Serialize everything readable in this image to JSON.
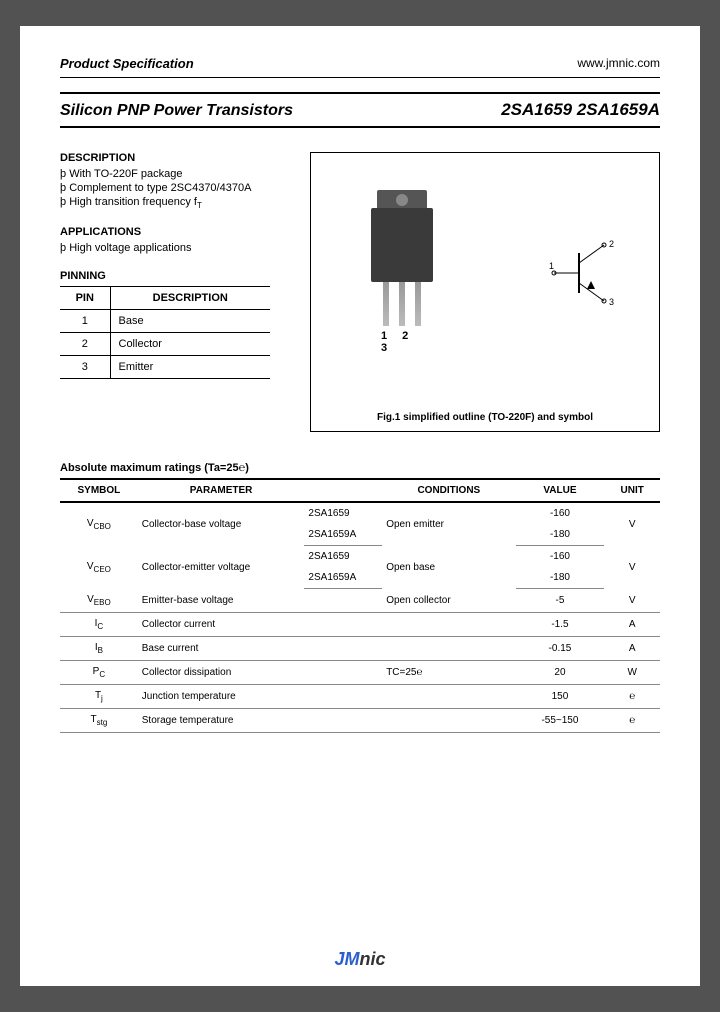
{
  "header": {
    "left": "Product Specification",
    "right": "www.jmnic.com"
  },
  "title": {
    "left": "Silicon PNP Power Transistors",
    "right": "2SA1659 2SA1659A"
  },
  "description": {
    "heading": "DESCRIPTION",
    "items": [
      "With TO-220F package",
      "Complement to type 2SC4370/4370A",
      "High transition frequency f"
    ]
  },
  "ft_sub": "T",
  "applications": {
    "heading": "APPLICATIONS",
    "items": [
      "High voltage applications"
    ]
  },
  "pinning": {
    "heading": "PINNING",
    "cols": [
      "PIN",
      "DESCRIPTION"
    ],
    "rows": [
      [
        "1",
        "Base"
      ],
      [
        "2",
        "Collector"
      ],
      [
        "3",
        "Emitter"
      ]
    ]
  },
  "figure": {
    "pin_label": "1 2 3",
    "caption": "Fig.1 simplified outline (TO-220F) and symbol",
    "sym_pins": [
      "1",
      "2",
      "3"
    ]
  },
  "ratings": {
    "heading": "Absolute maximum ratings (Ta=25℮)",
    "cols": [
      "SYMBOL",
      "PARAMETER",
      "",
      "CONDITIONS",
      "VALUE",
      "UNIT"
    ],
    "rows": [
      {
        "sym": "V",
        "sub": "CBO",
        "param": "Collector-base voltage",
        "cond": "Open emitter",
        "unit": "V",
        "variants": [
          [
            "2SA1659",
            "-160"
          ],
          [
            "2SA1659A",
            "-180"
          ]
        ]
      },
      {
        "sym": "V",
        "sub": "CEO",
        "param": "Collector-emitter voltage",
        "cond": "Open base",
        "unit": "V",
        "variants": [
          [
            "2SA1659",
            "-160"
          ],
          [
            "2SA1659A",
            "-180"
          ]
        ]
      },
      {
        "sym": "V",
        "sub": "EBO",
        "param": "Emitter-base voltage",
        "cond": "Open collector",
        "val": "-5",
        "unit": "V"
      },
      {
        "sym": "I",
        "sub": "C",
        "param": "Collector current",
        "cond": "",
        "val": "-1.5",
        "unit": "A"
      },
      {
        "sym": "I",
        "sub": "B",
        "param": "Base current",
        "cond": "",
        "val": "-0.15",
        "unit": "A"
      },
      {
        "sym": "P",
        "sub": "C",
        "param": "Collector dissipation",
        "cond": "TC=25℮",
        "val": "20",
        "unit": "W"
      },
      {
        "sym": "T",
        "sub": "j",
        "param": "Junction temperature",
        "cond": "",
        "val": "150",
        "unit": "℮"
      },
      {
        "sym": "T",
        "sub": "stg",
        "param": "Storage temperature",
        "cond": "",
        "val": "-55~150",
        "unit": "℮"
      }
    ]
  },
  "footer": {
    "j": "J",
    "m": "M",
    "nic": "nic"
  }
}
